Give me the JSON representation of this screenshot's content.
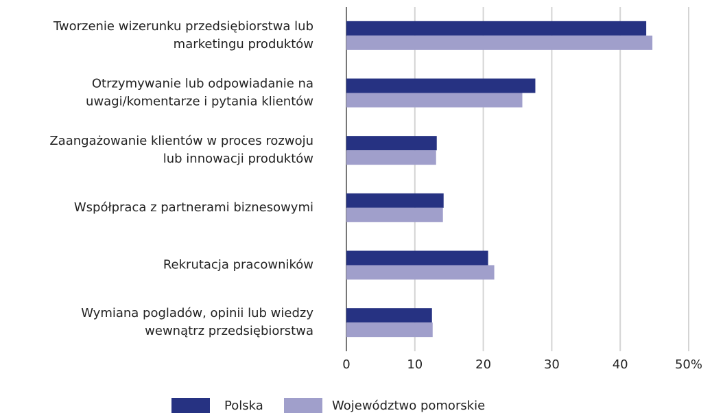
{
  "chart_data": {
    "type": "bar",
    "orientation": "horizontal",
    "categories": [
      [
        "Tworzenie wizerunku przedsiębiorstwa lub",
        "marketingu produktów"
      ],
      [
        "Otrzymywanie lub odpowiadanie na",
        "uwagi/komentarze i pytania klientów"
      ],
      [
        "Zaangażowanie klientów w proces rozwoju",
        "lub innowacji produktów"
      ],
      [
        "Współpraca z partnerami biznesowymi"
      ],
      [
        "Rekrutacja pracowników"
      ],
      [
        "Wymiana pogladów, opinii lub wiedzy",
        "wewnątrz przedsiębiorstwa"
      ]
    ],
    "series": [
      {
        "name": "Polska",
        "color": "#263282",
        "values": [
          43.8,
          27.6,
          13.2,
          14.2,
          20.7,
          12.5
        ]
      },
      {
        "name": "Województwo pomorskie",
        "color": "#a09fcb",
        "values": [
          44.7,
          25.7,
          13.1,
          14.1,
          21.6,
          12.6
        ]
      }
    ],
    "xlim": [
      0,
      50
    ],
    "xticks": [
      0,
      10,
      20,
      30,
      40,
      {
        "value": 50,
        "label": "50%"
      }
    ],
    "grid": true,
    "legend": "bottom"
  }
}
